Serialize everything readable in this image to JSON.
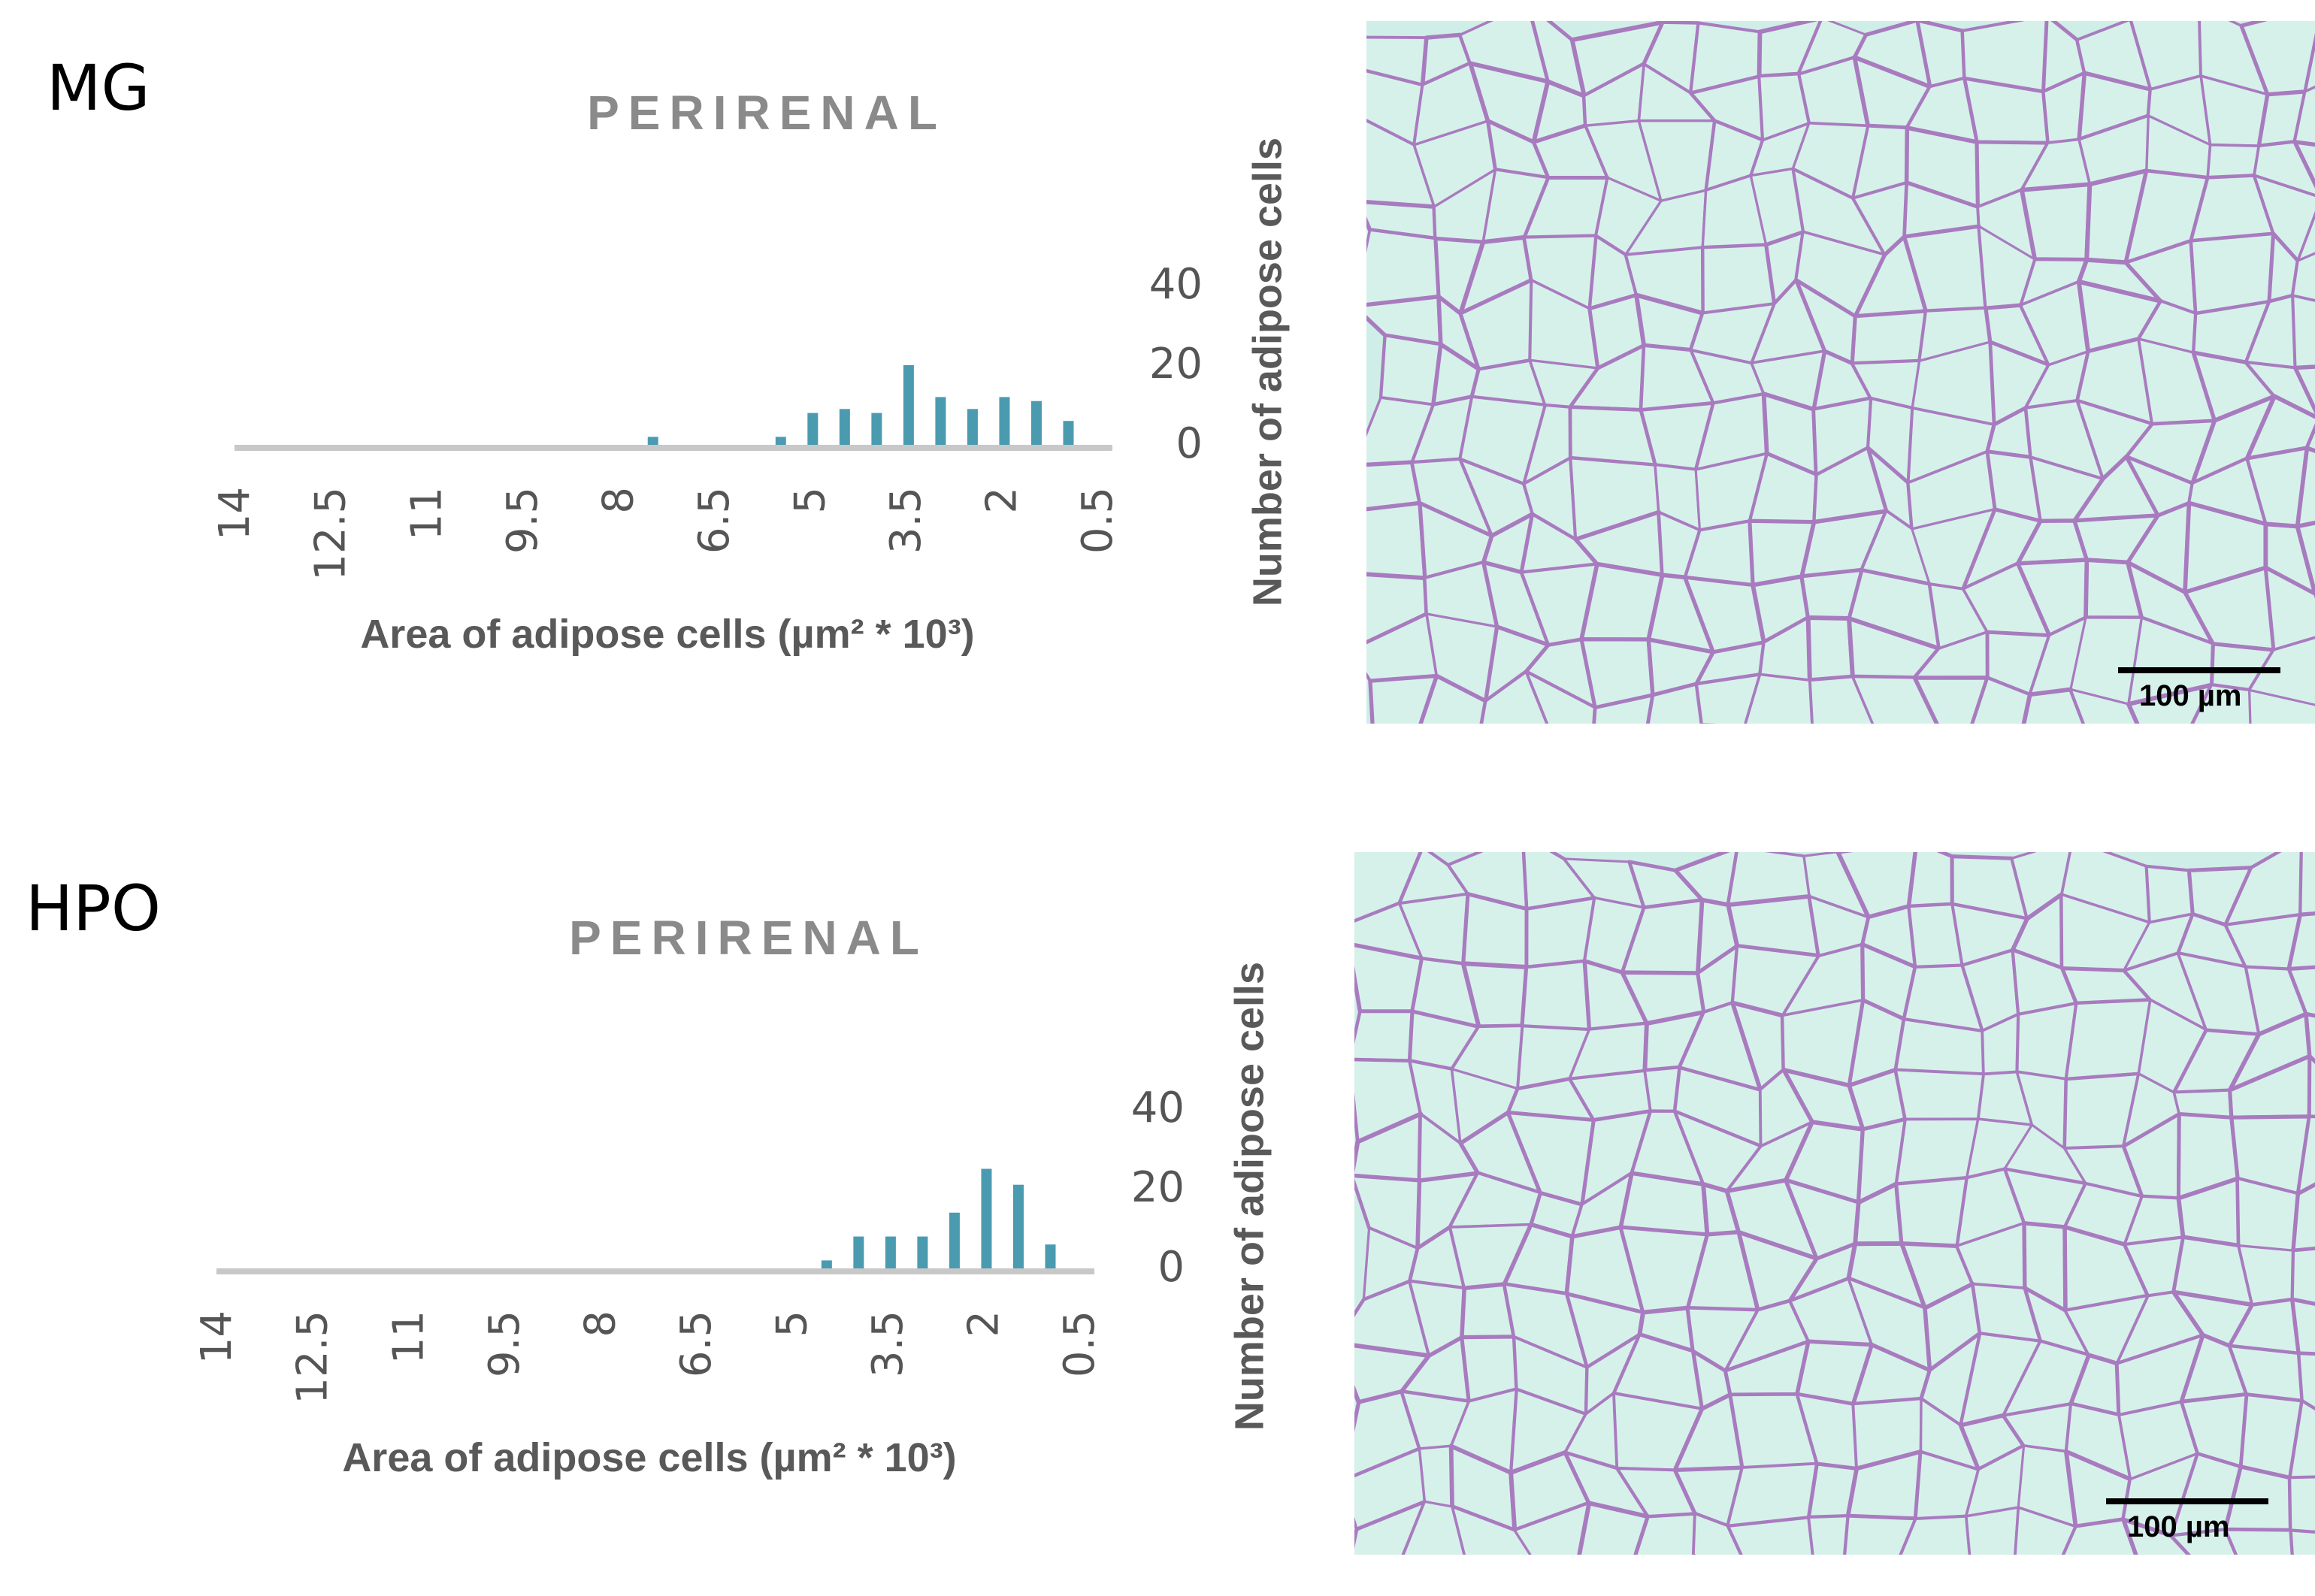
{
  "panels": [
    {
      "label": "MG",
      "scale_bar": "100 µm"
    },
    {
      "label": "HPO",
      "scale_bar": "100 µm"
    }
  ],
  "chart_data": [
    {
      "type": "bar",
      "title": "PERIRENAL",
      "xlabel": "Area of adipose cells (µm² * 10³)",
      "ylabel": "Number of adipose cells",
      "x_tick_labels": [
        "14",
        "12.5",
        "11",
        "9.5",
        "8",
        "6.5",
        "5",
        "3.5",
        "2",
        "0.5"
      ],
      "x_reversed": true,
      "x_bins": [
        14,
        13.5,
        13,
        12.5,
        12,
        11.5,
        11,
        10.5,
        10,
        9.5,
        9,
        8.5,
        8,
        7.5,
        7,
        6.5,
        6,
        5.5,
        5,
        4.5,
        4,
        3.5,
        3,
        2.5,
        2,
        1.5,
        1
      ],
      "values": [
        0,
        0,
        0,
        0,
        0,
        0,
        0,
        0,
        0,
        0,
        0,
        0,
        0,
        2,
        0,
        0,
        0,
        2,
        8,
        9,
        8,
        20,
        12,
        9,
        12,
        11,
        6
      ],
      "y_tick_labels": [
        "40",
        "20",
        "0"
      ],
      "ylim": [
        0,
        40
      ],
      "bar_color": "#4a9bb0",
      "axis_color": "#c8c8c8",
      "grid": false,
      "legend": "none"
    },
    {
      "type": "bar",
      "title": "PERIRENAL",
      "xlabel": "Area of adipose cells (µm² * 10³)",
      "ylabel": "Number of adipose cells",
      "x_tick_labels": [
        "14",
        "12.5",
        "11",
        "9.5",
        "8",
        "6.5",
        "5",
        "3.5",
        "2",
        "0.5"
      ],
      "x_reversed": true,
      "x_bins": [
        14,
        13.5,
        13,
        12.5,
        12,
        11.5,
        11,
        10.5,
        10,
        9.5,
        9,
        8.5,
        8,
        7.5,
        7,
        6.5,
        6,
        5.5,
        5,
        4.5,
        4,
        3.5,
        3,
        2.5,
        2,
        1.5,
        1
      ],
      "values": [
        0,
        0,
        0,
        0,
        0,
        0,
        0,
        0,
        0,
        0,
        0,
        0,
        0,
        0,
        0,
        0,
        0,
        0,
        0,
        2,
        8,
        8,
        8,
        14,
        25,
        21,
        6
      ],
      "y_tick_labels": [
        "40",
        "20",
        "0"
      ],
      "ylim": [
        0,
        40
      ],
      "bar_color": "#4a9bb0",
      "axis_color": "#c8c8c8",
      "grid": false,
      "legend": "none"
    }
  ]
}
